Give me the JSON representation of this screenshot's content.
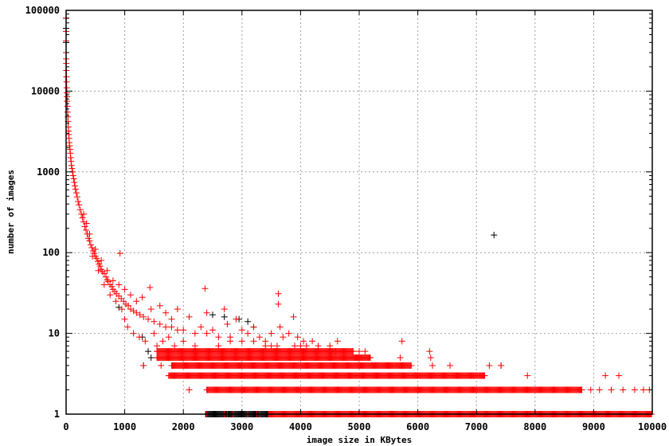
{
  "chart_data": {
    "type": "scatter",
    "xlabel": "image size in KBytes",
    "ylabel": "number of images",
    "xlim": [
      0,
      10000
    ],
    "ylim": [
      1,
      100000
    ],
    "yscale": "log",
    "grid": true,
    "legend": "none",
    "xticks": [
      "0",
      "1000",
      "2000",
      "3000",
      "4000",
      "5000",
      "6000",
      "7000",
      "8000",
      "9000",
      "10000"
    ],
    "yticks": [
      "1",
      "10",
      "100",
      "1000",
      "10000",
      "100000"
    ],
    "series": [
      {
        "color": "#000000",
        "marker": "plus",
        "points": [
          [
            0,
            80000
          ],
          [
            0,
            60000
          ],
          [
            0,
            40000
          ],
          [
            900,
            21
          ],
          [
            1300,
            9
          ],
          [
            1320,
            4
          ],
          [
            1400,
            6
          ],
          [
            1450,
            5
          ],
          [
            2400,
            2
          ],
          [
            2500,
            17
          ],
          [
            2700,
            16
          ],
          [
            2950,
            15
          ],
          [
            3100,
            14
          ],
          [
            3200,
            12
          ],
          [
            7300,
            165
          ],
          [
            7420,
            4
          ]
        ],
        "runs": [
          {
            "y": 1,
            "from": 2380,
            "to": 3450
          }
        ]
      },
      {
        "color": "#ff0000",
        "marker": "plus",
        "points": [
          [
            0,
            80000
          ],
          [
            0,
            55000
          ],
          [
            0,
            42000
          ],
          [
            0,
            30000
          ],
          [
            2,
            25000
          ],
          [
            3,
            22000
          ],
          [
            5,
            18000
          ],
          [
            7,
            15000
          ],
          [
            9,
            13000
          ],
          [
            11,
            11000
          ],
          [
            13,
            9500
          ],
          [
            16,
            8500
          ],
          [
            18,
            7500
          ],
          [
            22,
            6500
          ],
          [
            26,
            5500
          ],
          [
            30,
            4800
          ],
          [
            34,
            4200
          ],
          [
            38,
            3600
          ],
          [
            42,
            3200
          ],
          [
            46,
            2900
          ],
          [
            50,
            2600
          ],
          [
            55,
            2300
          ],
          [
            60,
            2100
          ],
          [
            66,
            1900
          ],
          [
            72,
            1700
          ],
          [
            78,
            1500
          ],
          [
            85,
            1350
          ],
          [
            92,
            1200
          ],
          [
            100,
            1100
          ],
          [
            110,
            1000
          ],
          [
            120,
            900
          ],
          [
            130,
            820
          ],
          [
            140,
            740
          ],
          [
            150,
            670
          ],
          [
            160,
            610
          ],
          [
            175,
            550
          ],
          [
            190,
            490
          ],
          [
            205,
            430
          ],
          [
            220,
            390
          ],
          [
            240,
            340
          ],
          [
            260,
            300
          ],
          [
            280,
            270
          ],
          [
            300,
            240
          ],
          [
            320,
            210
          ],
          [
            340,
            190
          ],
          [
            360,
            170
          ],
          [
            380,
            150
          ],
          [
            400,
            140
          ],
          [
            420,
            125
          ],
          [
            440,
            115
          ],
          [
            460,
            105
          ],
          [
            480,
            98
          ],
          [
            500,
            90
          ],
          [
            520,
            85
          ],
          [
            540,
            78
          ],
          [
            560,
            72
          ],
          [
            580,
            68
          ],
          [
            600,
            62
          ],
          [
            620,
            58
          ],
          [
            650,
            55
          ],
          [
            680,
            50
          ],
          [
            700,
            46
          ],
          [
            720,
            44
          ],
          [
            750,
            40
          ],
          [
            780,
            38
          ],
          [
            800,
            35
          ],
          [
            830,
            33
          ],
          [
            860,
            31
          ],
          [
            900,
            29
          ],
          [
            940,
            27
          ],
          [
            980,
            25
          ],
          [
            1020,
            23
          ],
          [
            1060,
            22
          ],
          [
            1100,
            20
          ],
          [
            1150,
            19
          ],
          [
            1200,
            18
          ],
          [
            1260,
            17
          ],
          [
            1320,
            16
          ],
          [
            1400,
            15
          ],
          [
            1500,
            14
          ],
          [
            1600,
            13
          ],
          [
            1700,
            12
          ],
          [
            1800,
            12
          ],
          [
            1900,
            11
          ],
          [
            2000,
            11
          ],
          [
            2200,
            10
          ],
          [
            2400,
            10
          ],
          [
            2600,
            9
          ],
          [
            2800,
            9
          ],
          [
            3000,
            8
          ],
          [
            3200,
            8
          ],
          [
            3400,
            7
          ],
          [
            3600,
            7
          ],
          [
            300,
            300
          ],
          [
            350,
            230
          ],
          [
            400,
            170
          ],
          [
            450,
            90
          ],
          [
            500,
            110
          ],
          [
            550,
            60
          ],
          [
            600,
            80
          ],
          [
            650,
            40
          ],
          [
            700,
            60
          ],
          [
            750,
            30
          ],
          [
            800,
            45
          ],
          [
            850,
            25
          ],
          [
            900,
            40
          ],
          [
            920,
            98
          ],
          [
            950,
            20
          ],
          [
            1000,
            35
          ],
          [
            1000,
            15
          ],
          [
            1050,
            12
          ],
          [
            1100,
            30
          ],
          [
            1150,
            10
          ],
          [
            1200,
            25
          ],
          [
            1250,
            9
          ],
          [
            1300,
            28
          ],
          [
            1350,
            8
          ],
          [
            1430,
            37
          ],
          [
            1450,
            20
          ],
          [
            1500,
            10
          ],
          [
            1550,
            7
          ],
          [
            1600,
            22
          ],
          [
            1650,
            8
          ],
          [
            1700,
            18
          ],
          [
            1750,
            9
          ],
          [
            1800,
            15
          ],
          [
            1850,
            7
          ],
          [
            1900,
            20
          ],
          [
            2000,
            8
          ],
          [
            2100,
            16
          ],
          [
            2200,
            7
          ],
          [
            2300,
            12
          ],
          [
            2370,
            36
          ],
          [
            2400,
            18
          ],
          [
            2500,
            11
          ],
          [
            2600,
            7
          ],
          [
            2700,
            20
          ],
          [
            2750,
            13
          ],
          [
            2800,
            8
          ],
          [
            2900,
            15
          ],
          [
            3000,
            11
          ],
          [
            3100,
            10
          ],
          [
            3200,
            12
          ],
          [
            3300,
            9
          ],
          [
            3400,
            8
          ],
          [
            3500,
            10
          ],
          [
            3620,
            31
          ],
          [
            3620,
            23
          ],
          [
            3650,
            12
          ],
          [
            3700,
            9
          ],
          [
            3800,
            10
          ],
          [
            3880,
            16
          ],
          [
            3950,
            9
          ],
          [
            4050,
            8
          ],
          [
            4200,
            8
          ],
          [
            4300,
            7
          ],
          [
            4500,
            7
          ],
          [
            4600,
            6
          ],
          [
            4630,
            8
          ],
          [
            5000,
            6
          ],
          [
            5100,
            6
          ],
          [
            5730,
            8
          ],
          [
            5700,
            5
          ],
          [
            6200,
            6
          ],
          [
            6220,
            5
          ],
          [
            6250,
            4
          ],
          [
            6550,
            4
          ],
          [
            7220,
            4
          ],
          [
            7420,
            4
          ],
          [
            7870,
            3
          ],
          [
            9200,
            3
          ],
          [
            9430,
            3
          ],
          [
            4000,
            7
          ],
          [
            3900,
            7
          ],
          [
            3500,
            7
          ],
          [
            4100,
            7
          ],
          [
            1320,
            4
          ],
          [
            1620,
            4
          ],
          [
            2100,
            2
          ],
          [
            2400,
            1
          ],
          [
            2700,
            1
          ],
          [
            2750,
            1
          ],
          [
            2850,
            1
          ],
          [
            3100,
            1
          ],
          [
            3250,
            1
          ],
          [
            3300,
            1
          ],
          [
            8950,
            2
          ],
          [
            9100,
            2
          ],
          [
            9300,
            2
          ],
          [
            9500,
            2
          ],
          [
            9700,
            2
          ],
          [
            9850,
            2
          ],
          [
            9950,
            2
          ]
        ],
        "runs": [
          {
            "y": 6,
            "from": 1550,
            "to": 4900
          },
          {
            "y": 5,
            "from": 1550,
            "to": 5200
          },
          {
            "y": 4,
            "from": 1800,
            "to": 5900
          },
          {
            "y": 3,
            "from": 1750,
            "to": 7150
          },
          {
            "y": 2,
            "from": 2400,
            "to": 8800
          },
          {
            "y": 1,
            "from": 3450,
            "to": 10000
          }
        ]
      }
    ]
  }
}
